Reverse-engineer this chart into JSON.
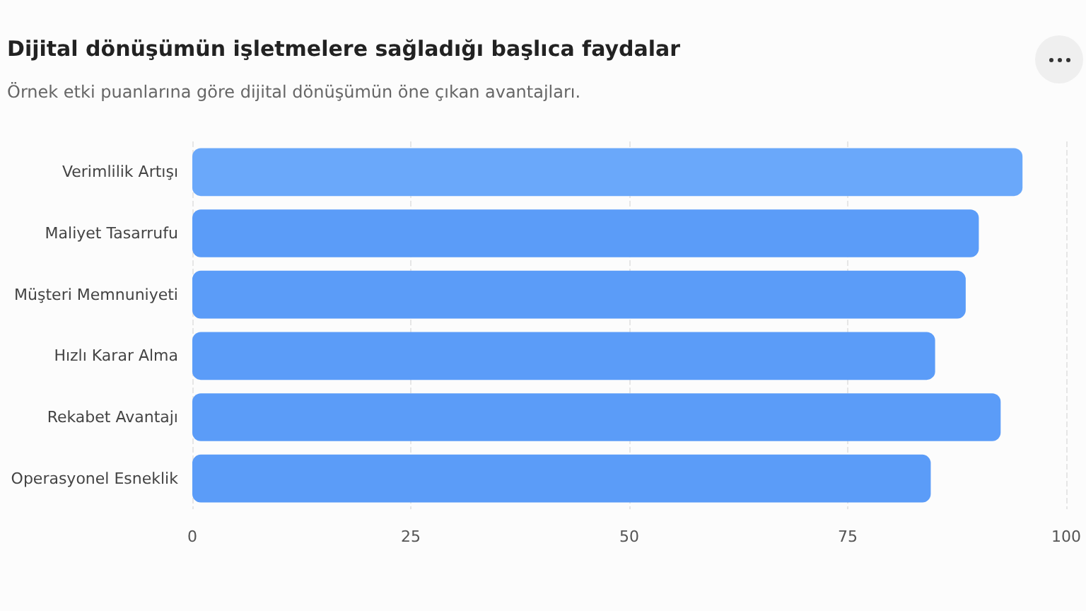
{
  "chart_data": {
    "type": "bar",
    "orientation": "horizontal",
    "title": "Dijital dönüşümün işletmelere sağladığı başlıca faydalar",
    "subtitle": "Örnek etki puanlarına göre dijital dönüşümün öne çıkan avantajları.",
    "categories": [
      "Verimlilik Artışı",
      "Maliyet Tasarrufu",
      "Müşteri Memnuniyeti",
      "Hızlı Karar Alma",
      "Rekabet Avantajı",
      "Operasyonel Esneklik"
    ],
    "values": [
      95,
      90,
      88.5,
      85,
      92.5,
      84.5
    ],
    "colors": [
      "#6aa8fa",
      "#5b9cf8",
      "#5b9cf8",
      "#5b9cf8",
      "#5b9cf8",
      "#5b9cf8"
    ],
    "xlim": [
      0,
      100
    ],
    "xticks": [
      0,
      25,
      50,
      75,
      100
    ],
    "grid": "x"
  }
}
